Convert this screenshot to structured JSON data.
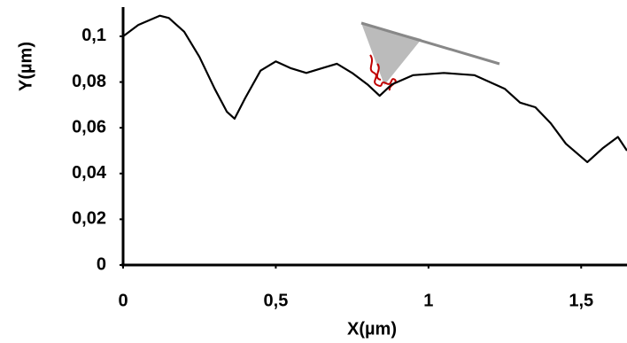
{
  "chart_data": {
    "type": "line",
    "x_label": "X(µm)",
    "y_label": "Y(µm)",
    "x": [
      0,
      0.05,
      0.12,
      0.15,
      0.2,
      0.25,
      0.3,
      0.34,
      0.365,
      0.4,
      0.45,
      0.5,
      0.55,
      0.6,
      0.65,
      0.7,
      0.75,
      0.8,
      0.84,
      0.88,
      0.95,
      1.05,
      1.15,
      1.25,
      1.3,
      1.35,
      1.4,
      1.45,
      1.52,
      1.57,
      1.62,
      1.65
    ],
    "values": [
      0.1,
      0.105,
      0.109,
      0.108,
      0.102,
      0.091,
      0.077,
      0.067,
      0.064,
      0.073,
      0.085,
      0.089,
      0.086,
      0.084,
      0.086,
      0.088,
      0.084,
      0.079,
      0.074,
      0.079,
      0.083,
      0.084,
      0.083,
      0.077,
      0.071,
      0.069,
      0.062,
      0.053,
      0.045,
      0.051,
      0.056,
      0.05
    ],
    "color": "#000000",
    "xlim": [
      0,
      1.65
    ],
    "ylim": [
      0,
      0.112
    ],
    "xticks": [
      0,
      {
        "value": 0.5,
        "label": "0,5"
      },
      1,
      {
        "value": 1.5,
        "label": "1,5"
      }
    ],
    "yticks": [
      0,
      {
        "value": 0.02,
        "label": "0,02"
      },
      {
        "value": 0.04,
        "label": "0,04"
      },
      {
        "value": 0.06,
        "label": "0,06"
      },
      {
        "value": 0.08,
        "label": "0,08"
      },
      {
        "value": 0.1,
        "label": "0,1"
      }
    ],
    "grid": false
  }
}
